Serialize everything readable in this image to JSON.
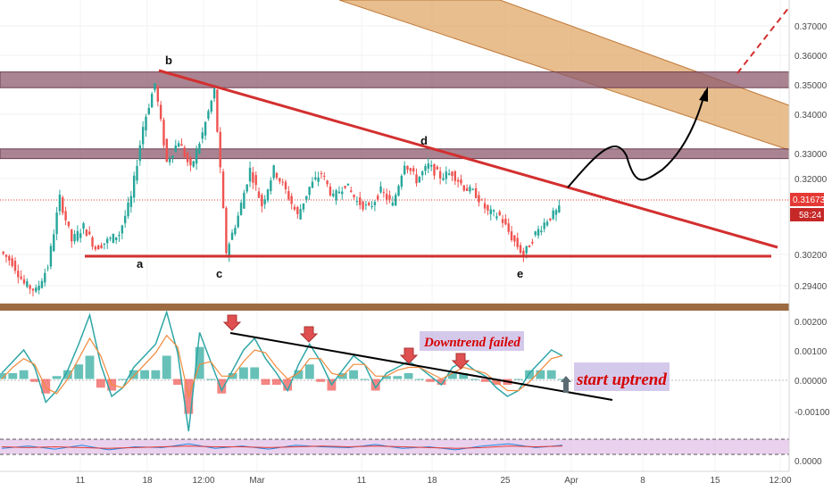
{
  "colors": {
    "trendline": "#d32f2f",
    "zone": "#8e5b6e",
    "channel_fill": "#e0a868",
    "channel_edge": "#c07a3a",
    "divider": "#9c6b42",
    "price_badge": "#e53935",
    "macd_line": "#2ea6a6",
    "signal_line": "#f08a3c",
    "hist_up": "#26a69a",
    "hist_down": "#ef5350",
    "rsi_band": "#e1bee7",
    "annotation_text": "#d50000",
    "annotation_box": "#b39ddb",
    "arrow": "#d32f2f"
  },
  "chart_data": [
    {
      "type": "candlestick",
      "title": "",
      "y_ticks": [
        "0.37000",
        "0.36000",
        "0.35000",
        "0.34000",
        "0.33000",
        "0.32000",
        "0.30200",
        "0.29400"
      ],
      "ylim": [
        0.2905,
        0.3753
      ],
      "x_ticks": [
        "11",
        "18",
        "12:00",
        "Mar",
        "11",
        "18",
        "25",
        "Apr",
        "8",
        "15",
        "12:00"
      ],
      "current_price": "0.31673",
      "countdown": "58:24",
      "wave_labels": [
        "b",
        "d",
        "a",
        "c",
        "e"
      ],
      "resistance_zones": [
        [
          0.3508,
          0.3552
        ],
        [
          0.331,
          0.3337
        ]
      ],
      "wave_points": [
        {
          "label": "a",
          "price": 0.302
        },
        {
          "label": "b",
          "price": 0.3532
        },
        {
          "label": "c",
          "price": 0.302
        },
        {
          "label": "d",
          "price": 0.332
        },
        {
          "label": "e",
          "price": 0.302
        }
      ],
      "price_path": [
        0.305,
        0.302,
        0.296,
        0.294,
        0.301,
        0.32,
        0.308,
        0.312,
        0.306,
        0.308,
        0.31,
        0.32,
        0.34,
        0.352,
        0.33,
        0.336,
        0.328,
        0.338,
        0.35,
        0.305,
        0.315,
        0.328,
        0.318,
        0.328,
        0.322,
        0.315,
        0.323,
        0.327,
        0.32,
        0.324,
        0.319,
        0.317,
        0.322,
        0.318,
        0.33,
        0.325,
        0.329,
        0.326,
        0.327,
        0.323,
        0.321,
        0.316,
        0.315,
        0.309,
        0.304,
        0.31,
        0.314,
        0.3167
      ]
    },
    {
      "type": "bar",
      "title": "",
      "y_ticks": [
        "0.00200",
        "0.00100",
        "0.00000",
        "-0.00100"
      ],
      "ylim": [
        -0.00195,
        0.00235
      ],
      "series": [
        {
          "values": [
            0.0002,
            0.0006,
            0.001,
            0.0004,
            -0.0008,
            -0.0004,
            0.0003,
            0.0012,
            0.0022,
            0.0005,
            -0.0006,
            -0.0003,
            0.0004,
            0.0008,
            0.0012,
            0.0023,
            0.0009,
            -0.0018,
            0.0016,
            0.0006,
            -0.0004,
            0.0003,
            0.001,
            0.0014,
            0.0007,
            0.0002,
            -0.0004,
            0.0005,
            0.0012,
            0.0006,
            -0.0002,
            0.0003,
            0.0008,
            0.0005,
            -0.0003,
            0.0002,
            0.0004,
            0.0006,
            0.0004,
            0.0001,
            -0.0002,
            0.0004,
            0.0006,
            0.0003,
            0.0001,
            -0.0003,
            -0.0006,
            -0.0004,
            0.0002,
            0.0006,
            0.001,
            0.0008
          ]
        },
        {
          "values": [
            0.0,
            0.0004,
            0.0007,
            0.0005,
            -0.0003,
            -0.0005,
            0.0,
            0.0007,
            0.0014,
            0.0008,
            -0.0002,
            -0.0003,
            0.0001,
            0.0005,
            0.0009,
            0.0015,
            0.0011,
            -0.0006,
            0.0005,
            0.0006,
            0.0001,
            0.0001,
            0.0006,
            0.001,
            0.0009,
            0.0004,
            0.0,
            0.0002,
            0.0007,
            0.0007,
            0.0002,
            0.0001,
            0.0005,
            0.0005,
            0.0001,
            0.0001,
            0.0003,
            0.0004,
            0.0004,
            0.0002,
            0.0,
            0.0002,
            0.0004,
            0.0003,
            0.0002,
            -0.0001,
            -0.0004,
            -0.0004,
            -0.0001,
            0.0003,
            0.0007,
            0.0008
          ]
        }
      ],
      "histogram": [
        0.0002,
        0.0002,
        0.0003,
        -0.0001,
        -0.0005,
        0.0001,
        0.0003,
        0.0005,
        0.0008,
        -0.0003,
        -0.0004,
        0.0,
        0.0003,
        0.0003,
        0.0003,
        0.0008,
        -0.0002,
        -0.0012,
        0.0011,
        0.0,
        -0.0005,
        0.0002,
        0.0004,
        0.0004,
        -0.0002,
        -0.0002,
        -0.0004,
        0.0003,
        0.0005,
        -0.0001,
        -0.0004,
        0.0002,
        0.0003,
        0.0,
        -0.0004,
        0.0001,
        0.0001,
        0.0002,
        0.0,
        -0.0001,
        -0.0002,
        0.0002,
        0.0002,
        0.0,
        -0.0001,
        -0.0002,
        -0.0002,
        0.0,
        0.0003,
        0.0003,
        0.0003,
        0.0
      ],
      "annotations": [
        "Downtrend failed",
        "start uptrend"
      ]
    },
    {
      "type": "line",
      "title": "",
      "y_ticks": [
        "0.0000"
      ],
      "series": [
        {
          "values": [
            0.4,
            0.55,
            0.35,
            0.6,
            0.3,
            0.5,
            0.45,
            0.7,
            0.4,
            0.55,
            0.35,
            0.6,
            0.5,
            0.45,
            0.65,
            0.4,
            0.5,
            0.3,
            0.55,
            0.7,
            0.45,
            0.6
          ]
        },
        {
          "values": [
            0.5,
            0.45,
            0.5,
            0.45,
            0.4,
            0.45,
            0.5,
            0.55,
            0.5,
            0.5,
            0.45,
            0.5,
            0.55,
            0.5,
            0.55,
            0.5,
            0.45,
            0.4,
            0.45,
            0.55,
            0.5,
            0.55
          ]
        }
      ]
    }
  ]
}
